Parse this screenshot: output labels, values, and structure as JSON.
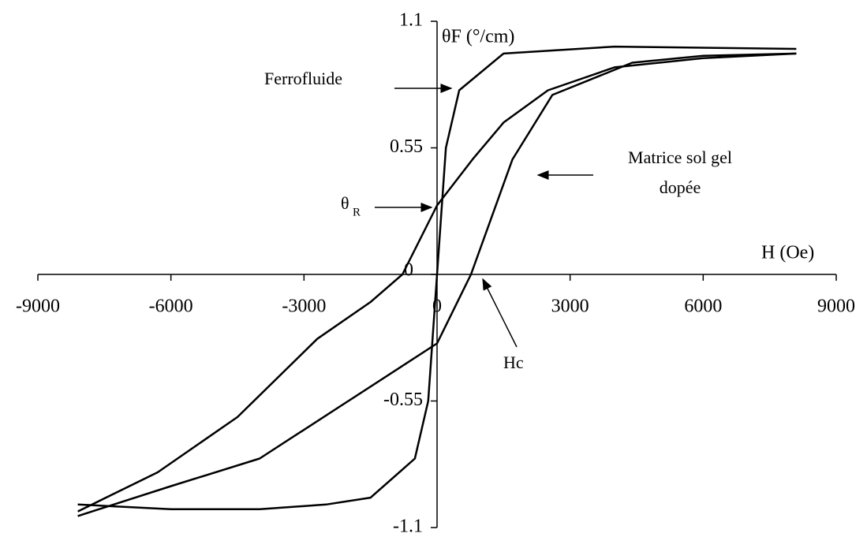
{
  "chart_data": {
    "type": "line",
    "x_label": "H (Oe)",
    "y_label": "θF (°/cm)",
    "xlim": [
      -9000,
      9000
    ],
    "ylim": [
      -1.1,
      1.1
    ],
    "xticks": [
      -9000,
      -6000,
      -3000,
      0,
      3000,
      6000,
      9000
    ],
    "yticks": [
      -1.1,
      -0.55,
      0,
      0.55,
      1.1
    ],
    "series": [
      {
        "color": "#000000",
        "x": [
          -8100,
          -6000,
          -4000,
          -2500,
          -1500,
          -500,
          -200,
          0,
          200,
          500,
          1500,
          4000,
          8100
        ],
        "values": [
          -1.0,
          -1.02,
          -1.02,
          -1.0,
          -0.97,
          -0.8,
          -0.55,
          0,
          0.55,
          0.8,
          0.96,
          0.99,
          0.98
        ]
      },
      {
        "color": "#000000",
        "x": [
          8100,
          6000,
          4000,
          2500,
          1500,
          800,
          0,
          -780,
          -1500,
          -2700,
          -4500,
          -6300,
          -8100
        ],
        "values": [
          0.96,
          0.94,
          0.9,
          0.8,
          0.66,
          0.5,
          0.3,
          0,
          -0.12,
          -0.28,
          -0.62,
          -0.86,
          -1.03
        ]
      },
      {
        "color": "#000000",
        "x": [
          -8100,
          -6000,
          -4000,
          -2000,
          0,
          765,
          1700,
          2600,
          4400,
          6000,
          8100
        ],
        "values": [
          -1.05,
          -0.92,
          -0.8,
          -0.55,
          -0.3,
          0,
          0.5,
          0.78,
          0.92,
          0.95,
          0.96
        ]
      }
    ],
    "annotations": {
      "ferro": "Ferrofluide",
      "matrice": [
        "Matrice sol gel",
        "dopée"
      ],
      "theta_r": {
        "text": "θ",
        "subscript": "R"
      },
      "hc": "Hc"
    }
  }
}
